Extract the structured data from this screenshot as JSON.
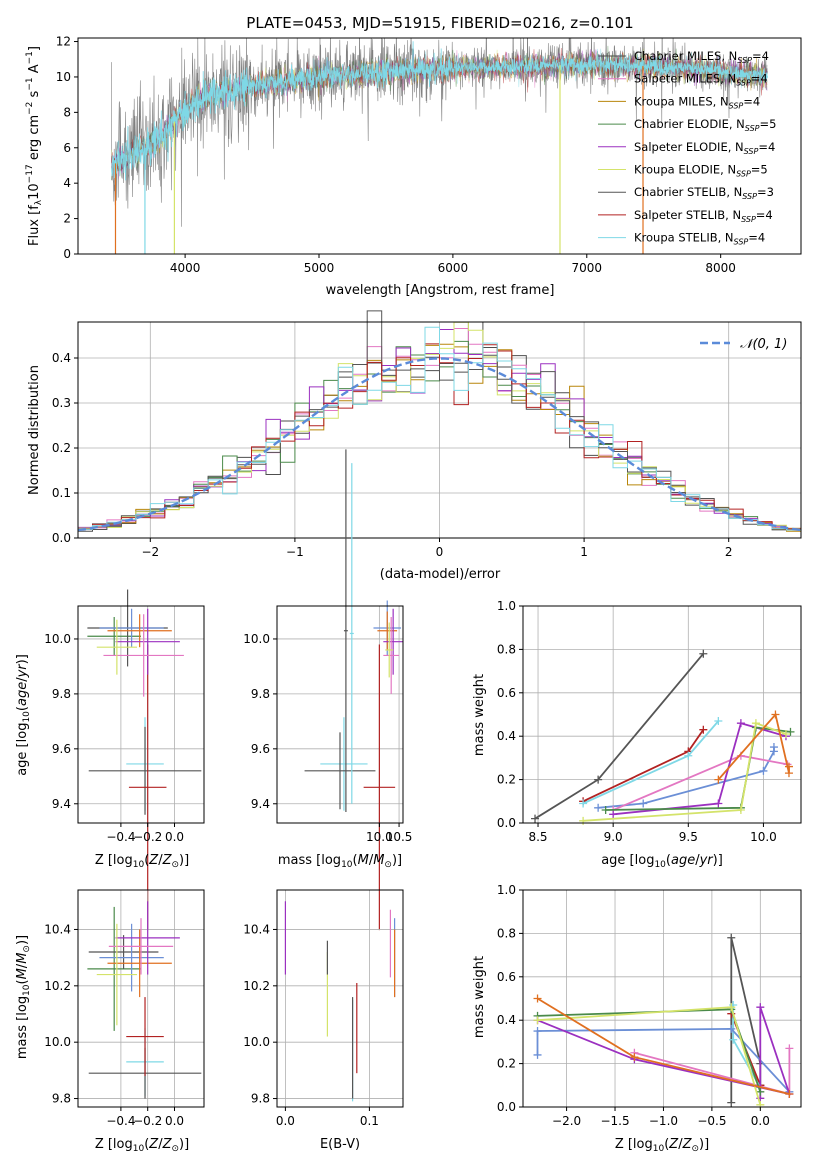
{
  "figure": {
    "title": "PLATE=0453, MJD=51915, FIBERID=0216, z=0.101"
  },
  "series_styles": [
    {
      "name": "Chabrier MILES",
      "nssp": "4",
      "color": "#4e4e4e"
    },
    {
      "name": "Salpeter MILES",
      "nssp": "4",
      "color": "#e377c2"
    },
    {
      "name": "Kroupa MILES",
      "nssp": "4",
      "color": "#b8860b"
    },
    {
      "name": "Chabrier ELODIE",
      "nssp": "5",
      "color": "#4a8a4a"
    },
    {
      "name": "Salpeter ELODIE",
      "nssp": "4",
      "color": "#9b30c0"
    },
    {
      "name": "Kroupa ELODIE",
      "nssp": "5",
      "color": "#d4e36a"
    },
    {
      "name": "Chabrier STELIB",
      "nssp": "3",
      "color": "#555555"
    },
    {
      "name": "Salpeter STELIB",
      "nssp": "4",
      "color": "#b22222"
    },
    {
      "name": "Kroupa STELIB",
      "nssp": "4",
      "color": "#7fd8e6"
    }
  ],
  "legend_entries": [
    "Chabrier MILES, N_SSP=4",
    "Salpeter MILES, N_SSP=4",
    "Kroupa MILES, N_SSP=4",
    "Chabrier ELODIE, N_SSP=5",
    "Salpeter ELODIE, N_SSP=4",
    "Kroupa ELODIE, N_SSP=5",
    "Chabrier STELIB, N_SSP=3",
    "Salpeter STELIB, N_SSP=4",
    "Kroupa STELIB, N_SSP=4"
  ],
  "chart_data": [
    {
      "id": "spectrum",
      "type": "line",
      "xlabel": "wavelength [Angstrom, rest frame]",
      "ylabel": "Flux [f_λ 10^-17 erg cm^-2 s^-1 A^-1]",
      "xlim": [
        3200,
        8600
      ],
      "ylim": [
        0,
        12.2
      ],
      "xticks": [
        "4000",
        "5000",
        "6000",
        "7000",
        "8000"
      ],
      "yticks": [
        "0",
        "2",
        "4",
        "6",
        "8",
        "10",
        "12"
      ],
      "grid": false,
      "legend_position": "top-right",
      "data_color": "#808080",
      "data_x_range": [
        3450,
        8350
      ],
      "continuum_x": [
        3450,
        3600,
        3800,
        4000,
        4200,
        4500,
        5000,
        5500,
        6000,
        6500,
        7000,
        7500,
        8000,
        8350
      ],
      "continuum_y": [
        5.0,
        5.6,
        6.4,
        8.2,
        9.0,
        9.5,
        10.0,
        10.3,
        10.5,
        10.6,
        10.7,
        10.6,
        10.3,
        10.0
      ],
      "gap_lines": [
        {
          "x": 3480,
          "color": "#e07020"
        },
        {
          "x": 3700,
          "color": "#7fd8e6"
        },
        {
          "x": 3920,
          "color": "#d4e36a"
        },
        {
          "x": 6800,
          "color": "#d4e36a"
        },
        {
          "x": 7420,
          "color": "#e07020"
        }
      ]
    },
    {
      "id": "residual_hist",
      "type": "line",
      "xlabel": "(data-model)/error",
      "ylabel": "Normed distribution",
      "xlim": [
        -2.5,
        2.5
      ],
      "ylim": [
        0,
        0.48
      ],
      "xticks": [
        -2,
        -1,
        0,
        1,
        2
      ],
      "xtick_labels": [
        "−2",
        "−1",
        "0",
        "1",
        "2"
      ],
      "yticks": [
        "0.0",
        "0.1",
        "0.2",
        "0.3",
        "0.4"
      ],
      "grid": true,
      "legend_position": "top-right",
      "legend_label": "𝒩(0, 1)",
      "gaussian": {
        "mean": 0,
        "sigma": 1,
        "color": "#5b8bd9"
      },
      "bins": 50
    },
    {
      "id": "age_vs_Z",
      "type": "scatter",
      "xlabel": "Z [log10(Z/Z⊙)]",
      "ylabel": "age [log10(age/yr)]",
      "xlim": [
        -0.72,
        0.22
      ],
      "ylim": [
        9.33,
        10.12
      ],
      "xticks": [
        "−0.4",
        "−0.2",
        "0.0"
      ],
      "yticks": [
        "9.4",
        "9.6",
        "9.8",
        "10.0"
      ],
      "grid": true,
      "points": [
        {
          "color": "#7fd8e6",
          "x": -0.22,
          "xerr": 0.14,
          "y": 9.545,
          "yerr": 0.17
        },
        {
          "color": "#555555",
          "x": -0.22,
          "xerr": 0.42,
          "y": 9.52,
          "yerr": 0.16
        },
        {
          "color": "#b22222",
          "x": -0.2,
          "xerr": 0.14,
          "y": 9.46,
          "yerr": 0.52
        },
        {
          "color": "#4a8a4a",
          "x": -0.45,
          "xerr": 0.2,
          "y": 10.01,
          "yerr": 0.07
        },
        {
          "color": "#555555",
          "x": -0.35,
          "xerr": 0.3,
          "y": 10.04,
          "yerr": 0.14
        },
        {
          "color": "#6b8fd6",
          "x": -0.32,
          "xerr": 0.24,
          "y": 10.04,
          "yerr": 0.07
        },
        {
          "color": "#e07020",
          "x": -0.26,
          "xerr": 0.24,
          "y": 10.03,
          "yerr": 0.06
        },
        {
          "color": "#9b30c0",
          "x": -0.2,
          "xerr": 0.24,
          "y": 9.99,
          "yerr": 0.12
        },
        {
          "color": "#e377c2",
          "x": -0.23,
          "xerr": 0.3,
          "y": 9.94,
          "yerr": 0.15
        },
        {
          "color": "#d4e36a",
          "x": -0.43,
          "xerr": 0.15,
          "y": 9.97,
          "yerr": 0.1
        }
      ]
    },
    {
      "id": "age_vs_mass",
      "type": "scatter",
      "xlabel": "mass [log10(M/M⊙)]",
      "ylabel": "",
      "xlim": [
        7.4,
        10.6
      ],
      "ylim": [
        9.33,
        10.12
      ],
      "xticks": [
        "10.0",
        "10.5"
      ],
      "yticks": [
        "9.4",
        "9.6",
        "9.8",
        "10.0"
      ],
      "grid": true,
      "points": [
        {
          "color": "#7fd8e6",
          "x": 9.1,
          "xerr": 0.6,
          "y": 9.545,
          "yerr": 0.17
        },
        {
          "color": "#555555",
          "x": 9.0,
          "xerr": 0.9,
          "y": 9.52,
          "yerr": 0.14
        },
        {
          "color": "#b22222",
          "x": 10.0,
          "xerr": 0.4,
          "y": 9.46,
          "yerr": 0.52
        },
        {
          "color": "#555555",
          "x": 9.15,
          "xerr": 0.05,
          "y": 10.03,
          "yerr": 0.66
        },
        {
          "color": "#7fd8e6",
          "x": 9.3,
          "xerr": 0.05,
          "y": 10.02,
          "yerr": 0.62
        },
        {
          "color": "#6b8fd6",
          "x": 10.2,
          "xerr": 0.35,
          "y": 10.04,
          "yerr": 0.1
        },
        {
          "color": "#e07020",
          "x": 10.2,
          "xerr": 0.25,
          "y": 10.03,
          "yerr": 0.07
        },
        {
          "color": "#9b30c0",
          "x": 10.35,
          "xerr": 0.25,
          "y": 9.99,
          "yerr": 0.12
        },
        {
          "color": "#e377c2",
          "x": 10.3,
          "xerr": 0.2,
          "y": 9.94,
          "yerr": 0.14
        },
        {
          "color": "#d4e36a",
          "x": 10.25,
          "xerr": 0.1,
          "y": 9.96,
          "yerr": 0.1
        }
      ]
    },
    {
      "id": "mass_vs_Z",
      "type": "scatter",
      "xlabel": "Z [log10(Z/Z⊙)]",
      "ylabel": "mass [log10(M/M⊙)]",
      "xlim": [
        -0.72,
        0.22
      ],
      "ylim": [
        9.77,
        10.54
      ],
      "xticks": [
        "−0.4",
        "−0.2",
        "0.0"
      ],
      "yticks": [
        "9.8",
        "10.0",
        "10.2",
        "10.4"
      ],
      "grid": true,
      "points": [
        {
          "color": "#7fd8e6",
          "x": -0.22,
          "xerr": 0.14,
          "y": 9.93,
          "yerr": 0.12
        },
        {
          "color": "#555555",
          "x": -0.22,
          "xerr": 0.42,
          "y": 9.89,
          "yerr": 0.09
        },
        {
          "color": "#b22222",
          "x": -0.22,
          "xerr": 0.14,
          "y": 10.02,
          "yerr": 0.14
        },
        {
          "color": "#4a8a4a",
          "x": -0.45,
          "xerr": 0.2,
          "y": 10.26,
          "yerr": 0.22
        },
        {
          "color": "#555555",
          "x": -0.38,
          "xerr": 0.26,
          "y": 10.32,
          "yerr": 0.06
        },
        {
          "color": "#6b8fd6",
          "x": -0.32,
          "xerr": 0.24,
          "y": 10.3,
          "yerr": 0.12
        },
        {
          "color": "#e07020",
          "x": -0.26,
          "xerr": 0.24,
          "y": 10.28,
          "yerr": 0.12
        },
        {
          "color": "#9b30c0",
          "x": -0.2,
          "xerr": 0.24,
          "y": 10.37,
          "yerr": 0.13
        },
        {
          "color": "#e377c2",
          "x": -0.25,
          "xerr": 0.24,
          "y": 10.34,
          "yerr": 0.1
        },
        {
          "color": "#d4e36a",
          "x": -0.43,
          "xerr": 0.15,
          "y": 10.24,
          "yerr": 0.18
        }
      ]
    },
    {
      "id": "mass_vs_EBV",
      "type": "scatter",
      "xlabel": "E(B-V)",
      "ylabel": "",
      "xlim": [
        -0.01,
        0.14
      ],
      "ylim": [
        9.77,
        10.54
      ],
      "xticks": [
        "0.0",
        "0.1"
      ],
      "yticks": [
        "9.8",
        "10.0",
        "10.2",
        "10.4"
      ],
      "grid": true,
      "points": [
        {
          "color": "#9b30c0",
          "x": 0.0,
          "xerr": 0,
          "y": 10.37,
          "yerr": 0.13
        },
        {
          "color": "#d4e36a",
          "x": 0.05,
          "xerr": 0,
          "y": 10.17,
          "yerr": 0.15
        },
        {
          "color": "#555555",
          "x": 0.05,
          "xerr": 0,
          "y": 10.3,
          "yerr": 0.06
        },
        {
          "color": "#7fd8e6",
          "x": 0.08,
          "xerr": 0,
          "y": 9.97,
          "yerr": 0.18
        },
        {
          "color": "#555555",
          "x": 0.08,
          "xerr": 0,
          "y": 9.98,
          "yerr": 0.18
        },
        {
          "color": "#b22222",
          "x": 0.085,
          "xerr": 0,
          "y": 10.05,
          "yerr": 0.16
        },
        {
          "color": "#e377c2",
          "x": 0.125,
          "xerr": 0,
          "y": 10.35,
          "yerr": 0.12
        },
        {
          "color": "#6b8fd6",
          "x": 0.13,
          "xerr": 0,
          "y": 10.3,
          "yerr": 0.14
        },
        {
          "color": "#e07020",
          "x": 0.13,
          "xerr": 0,
          "y": 10.28,
          "yerr": 0.12
        }
      ]
    },
    {
      "id": "weight_vs_age",
      "type": "line",
      "xlabel": "age [log10(age/yr)]",
      "ylabel": "mass weight",
      "xlim": [
        8.4,
        10.25
      ],
      "ylim": [
        0,
        1.0
      ],
      "xticks": [
        "8.5",
        "9.0",
        "9.5",
        "10.0"
      ],
      "yticks": [
        "0.0",
        "0.2",
        "0.4",
        "0.6",
        "0.8",
        "1.0"
      ],
      "grid": true,
      "series": [
        {
          "color": "#555555",
          "x": [
            8.48,
            8.9,
            9.6
          ],
          "y": [
            0.02,
            0.2,
            0.78
          ]
        },
        {
          "color": "#b22222",
          "x": [
            8.8,
            9.5,
            9.6
          ],
          "y": [
            0.1,
            0.33,
            0.43
          ]
        },
        {
          "color": "#7fd8e6",
          "x": [
            8.8,
            9.5,
            9.7
          ],
          "y": [
            0.09,
            0.31,
            0.47
          ]
        },
        {
          "color": "#6b8fd6",
          "x": [
            8.9,
            9.2,
            10.0,
            10.07,
            10.07
          ],
          "y": [
            0.07,
            0.09,
            0.24,
            0.33,
            0.35
          ]
        },
        {
          "color": "#e377c2",
          "x": [
            9.0,
            9.85,
            10.16
          ],
          "y": [
            0.06,
            0.31,
            0.27
          ]
        },
        {
          "color": "#9b30c0",
          "x": [
            9.0,
            9.7,
            9.85,
            10.15
          ],
          "y": [
            0.04,
            0.09,
            0.46,
            0.4
          ]
        },
        {
          "color": "#4a8a4a",
          "x": [
            8.95,
            9.85,
            9.95,
            10.18
          ],
          "y": [
            0.06,
            0.07,
            0.44,
            0.42
          ]
        },
        {
          "color": "#d4e36a",
          "x": [
            8.8,
            9.85,
            9.95,
            10.15
          ],
          "y": [
            0.01,
            0.06,
            0.46,
            0.41
          ]
        },
        {
          "color": "#e07020",
          "x": [
            9.7,
            10.08,
            10.17,
            10.17
          ],
          "y": [
            0.2,
            0.5,
            0.23,
            0.26
          ]
        }
      ]
    },
    {
      "id": "weight_vs_Z",
      "type": "line",
      "xlabel": "Z [log10(Z/Z⊙)]",
      "ylabel": "mass weight",
      "xlim": [
        -2.45,
        0.42
      ],
      "ylim": [
        0,
        1.0
      ],
      "xticks": [
        -2.0,
        -1.5,
        -1.0,
        -0.5,
        0.0
      ],
      "xtick_labels": [
        "−2.0",
        "−1.5",
        "−1.0",
        "−0.5",
        "0.0"
      ],
      "yticks": [
        "0.0",
        "0.2",
        "0.4",
        "0.6",
        "0.8",
        "1.0"
      ],
      "grid": true,
      "series": [
        {
          "color": "#555555",
          "x": [
            -0.3,
            -0.3,
            0.0,
            0.0
          ],
          "y": [
            0.02,
            0.78,
            0.2,
            0.1
          ]
        },
        {
          "color": "#b22222",
          "x": [
            -0.3,
            0.0
          ],
          "y": [
            0.43,
            0.1
          ]
        },
        {
          "color": "#7fd8e6",
          "x": [
            -0.28,
            -0.28,
            0.0
          ],
          "y": [
            0.47,
            0.31,
            0.09
          ]
        },
        {
          "color": "#6b8fd6",
          "x": [
            -2.3,
            -2.3,
            -0.3,
            0.3
          ],
          "y": [
            0.24,
            0.35,
            0.36,
            0.07
          ]
        },
        {
          "color": "#e377c2",
          "x": [
            -1.3,
            0.3,
            0.3
          ],
          "y": [
            0.25,
            0.06,
            0.27
          ]
        },
        {
          "color": "#9b30c0",
          "x": [
            -2.3,
            -1.3,
            0.3,
            0.0,
            0.0
          ],
          "y": [
            0.4,
            0.22,
            0.06,
            0.46,
            0.04
          ]
        },
        {
          "color": "#4a8a4a",
          "x": [
            -2.3,
            -0.3,
            0.0
          ],
          "y": [
            0.42,
            0.45,
            0.07
          ]
        },
        {
          "color": "#d4e36a",
          "x": [
            -2.3,
            -0.3,
            0.0
          ],
          "y": [
            0.4,
            0.46,
            0.01
          ]
        },
        {
          "color": "#e07020",
          "x": [
            -2.3,
            -1.3,
            0.3
          ],
          "y": [
            0.5,
            0.23,
            0.06
          ]
        }
      ]
    }
  ]
}
